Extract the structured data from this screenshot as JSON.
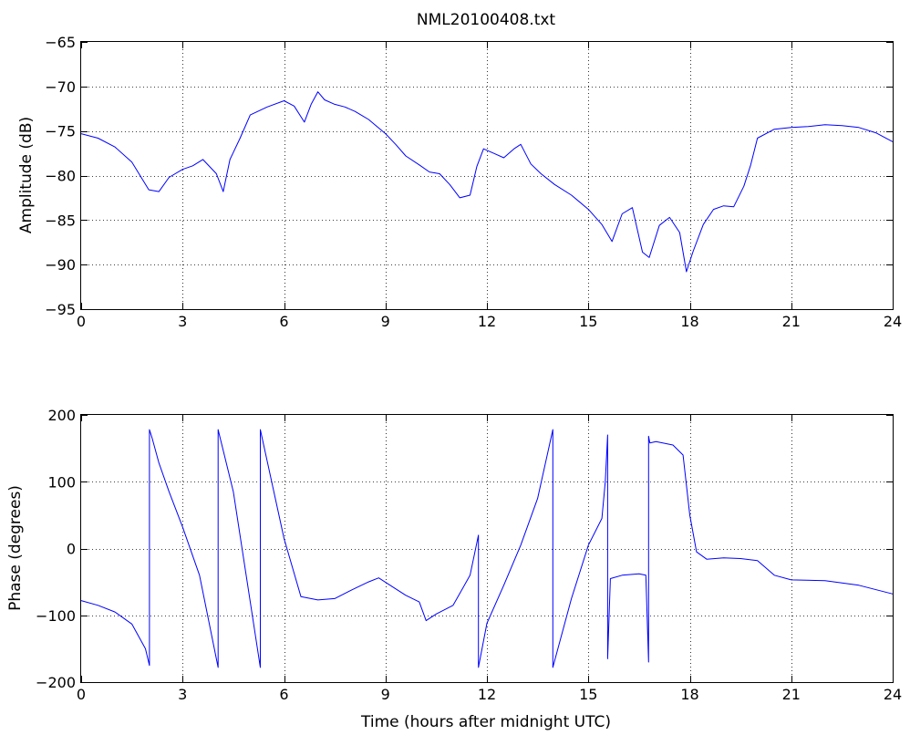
{
  "chart_data": [
    {
      "type": "line",
      "title": "NML20100408.txt",
      "xlabel": "",
      "ylabel": "Amplitude (dB)",
      "xlim": [
        0,
        24
      ],
      "ylim": [
        -95,
        -65
      ],
      "xticks": [
        0,
        3,
        6,
        9,
        12,
        15,
        18,
        21,
        24
      ],
      "yticks": [
        -95,
        -90,
        -85,
        -80,
        -75,
        -70,
        -65
      ],
      "grid": true,
      "color": "#0000ff",
      "series": [
        {
          "x": [
            0,
            0.5,
            1,
            1.5,
            2,
            2.3,
            2.6,
            3,
            3.3,
            3.6,
            4,
            4.2,
            4.4,
            4.7,
            5,
            5.5,
            6,
            6.3,
            6.6,
            6.8,
            7,
            7.2,
            7.5,
            7.8,
            8.1,
            8.5,
            9,
            9.3,
            9.6,
            10,
            10.3,
            10.6,
            10.9,
            11.2,
            11.5,
            11.7,
            11.9,
            12.2,
            12.5,
            12.8,
            13,
            13.3,
            13.6,
            14,
            14.5,
            15,
            15.4,
            15.7,
            16,
            16.3,
            16.6,
            16.8,
            17.1,
            17.4,
            17.7,
            17.9,
            18.1,
            18.4,
            18.7,
            19,
            19.3,
            19.6,
            19.8,
            20,
            20.5,
            21,
            21.5,
            22,
            22.5,
            23,
            23.5,
            24
          ],
          "y": [
            -75.3,
            -75.8,
            -76.8,
            -78.5,
            -81.6,
            -81.8,
            -80.2,
            -79.3,
            -78.9,
            -78.2,
            -79.8,
            -81.8,
            -78.2,
            -75.8,
            -73.2,
            -72.3,
            -71.6,
            -72.2,
            -74.0,
            -72.0,
            -70.6,
            -71.5,
            -72.0,
            -72.3,
            -72.8,
            -73.7,
            -75.3,
            -76.5,
            -77.8,
            -78.8,
            -79.6,
            -79.8,
            -81.0,
            -82.5,
            -82.2,
            -79.0,
            -77.0,
            -77.5,
            -78.0,
            -77.0,
            -76.5,
            -78.7,
            -79.8,
            -81.0,
            -82.2,
            -83.8,
            -85.5,
            -87.4,
            -84.3,
            -83.6,
            -88.6,
            -89.2,
            -85.6,
            -84.7,
            -86.4,
            -90.8,
            -88.5,
            -85.5,
            -83.8,
            -83.4,
            -83.5,
            -81.2,
            -78.8,
            -75.8,
            -74.8,
            -74.6,
            -74.5,
            -74.3,
            -74.4,
            -74.6,
            -75.2,
            -76.2
          ]
        }
      ]
    },
    {
      "type": "line",
      "title": "",
      "xlabel": "Time (hours after midnight UTC)",
      "ylabel": "Phase (degrees)",
      "xlim": [
        0,
        24
      ],
      "ylim": [
        -200,
        200
      ],
      "xticks": [
        0,
        3,
        6,
        9,
        12,
        15,
        18,
        21,
        24
      ],
      "yticks": [
        -200,
        -100,
        0,
        100,
        200
      ],
      "grid": true,
      "color": "#0000ff",
      "series": [
        {
          "x": [
            0,
            0.5,
            1,
            1.5,
            1.9,
            2.02,
            2.02,
            2.1,
            2.3,
            2.6,
            3,
            3.5,
            4.05,
            4.05,
            4.5,
            5.3,
            5.3,
            6,
            6.5,
            7,
            7.5,
            8,
            8.5,
            8.8,
            9.2,
            9.6,
            10,
            10.2,
            10.5,
            11,
            11.5,
            11.75,
            11.75,
            12,
            12.5,
            13,
            13.5,
            13.95,
            13.95,
            14.5,
            15,
            15.4,
            15.5,
            15.57,
            15.57,
            15.65,
            16,
            16.5,
            16.7,
            16.78,
            16.78,
            16.82,
            17,
            17.5,
            17.8,
            18,
            18.2,
            18.5,
            19,
            19.5,
            20,
            20.5,
            21,
            22,
            23,
            24
          ],
          "y": [
            -78,
            -85,
            -95,
            -113,
            -150,
            -175,
            178,
            165,
            128,
            85,
            32,
            -40,
            -178,
            178,
            85,
            -178,
            178,
            15,
            -72,
            -77,
            -75,
            -62,
            -50,
            -44,
            -57,
            -70,
            -80,
            -108,
            -98,
            -85,
            -40,
            20,
            -178,
            -112,
            -55,
            5,
            75,
            178,
            -178,
            -75,
            5,
            45,
            100,
            170,
            -165,
            -45,
            -40,
            -38,
            -40,
            -170,
            168,
            158,
            160,
            155,
            140,
            50,
            -5,
            -16,
            -14,
            -15,
            -18,
            -40,
            -47,
            -48,
            -55,
            -68
          ]
        }
      ]
    }
  ]
}
